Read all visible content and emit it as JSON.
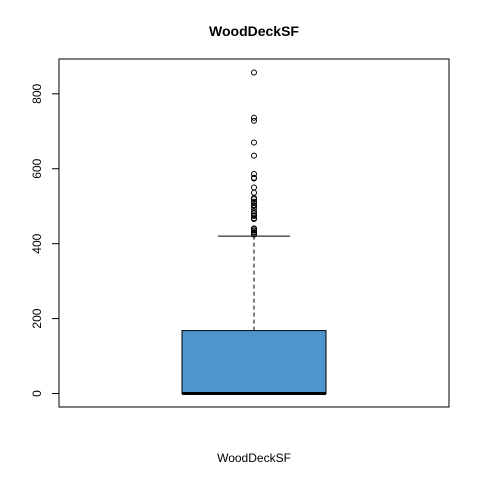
{
  "chart_data": {
    "type": "box",
    "title": "WoodDeckSF",
    "xlabel": "WoodDeckSF",
    "ylabel": "",
    "ylim": [
      -36,
      893
    ],
    "yticks": [
      0,
      200,
      400,
      600,
      800
    ],
    "ytick_labels": [
      "0",
      "200",
      "400",
      "600",
      "800"
    ],
    "box": {
      "fill": "#4f94cd",
      "whisker_low": 0,
      "q1": 0,
      "median": 0,
      "q3": 168,
      "whisker_high": 420
    },
    "outliers": [
      857,
      736,
      728,
      670,
      635,
      586,
      576,
      574,
      550,
      536,
      522,
      519,
      512,
      509,
      503,
      501,
      495,
      486,
      481,
      476,
      474,
      468,
      466,
      441,
      440,
      436,
      435,
      431,
      430,
      426,
      424
    ]
  }
}
